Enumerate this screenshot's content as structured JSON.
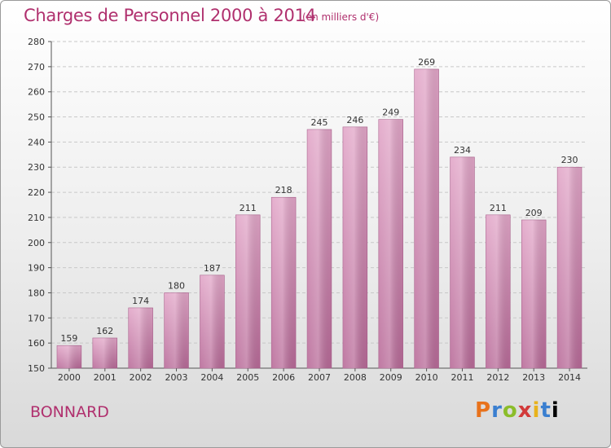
{
  "chart_data": {
    "type": "bar",
    "title": "Charges de Personnel 2000 à 2014",
    "subtitle": "(en milliers d'€)",
    "categories": [
      "2000",
      "2001",
      "2002",
      "2003",
      "2004",
      "2005",
      "2006",
      "2007",
      "2008",
      "2009",
      "2010",
      "2011",
      "2012",
      "2013",
      "2014"
    ],
    "values": [
      159,
      162,
      174,
      180,
      187,
      211,
      218,
      245,
      246,
      249,
      269,
      234,
      211,
      209,
      230
    ],
    "ylim": [
      150,
      280
    ],
    "yticks": [
      150,
      160,
      170,
      180,
      190,
      200,
      210,
      220,
      230,
      240,
      250,
      260,
      270,
      280
    ],
    "xlabel": "",
    "ylabel": "",
    "grid": true,
    "bar_color": "#d98bb7"
  },
  "footer": {
    "town": "BONNARD",
    "logo_letters": [
      "P",
      "r",
      "o",
      "x",
      "i",
      "t",
      "i"
    ]
  }
}
